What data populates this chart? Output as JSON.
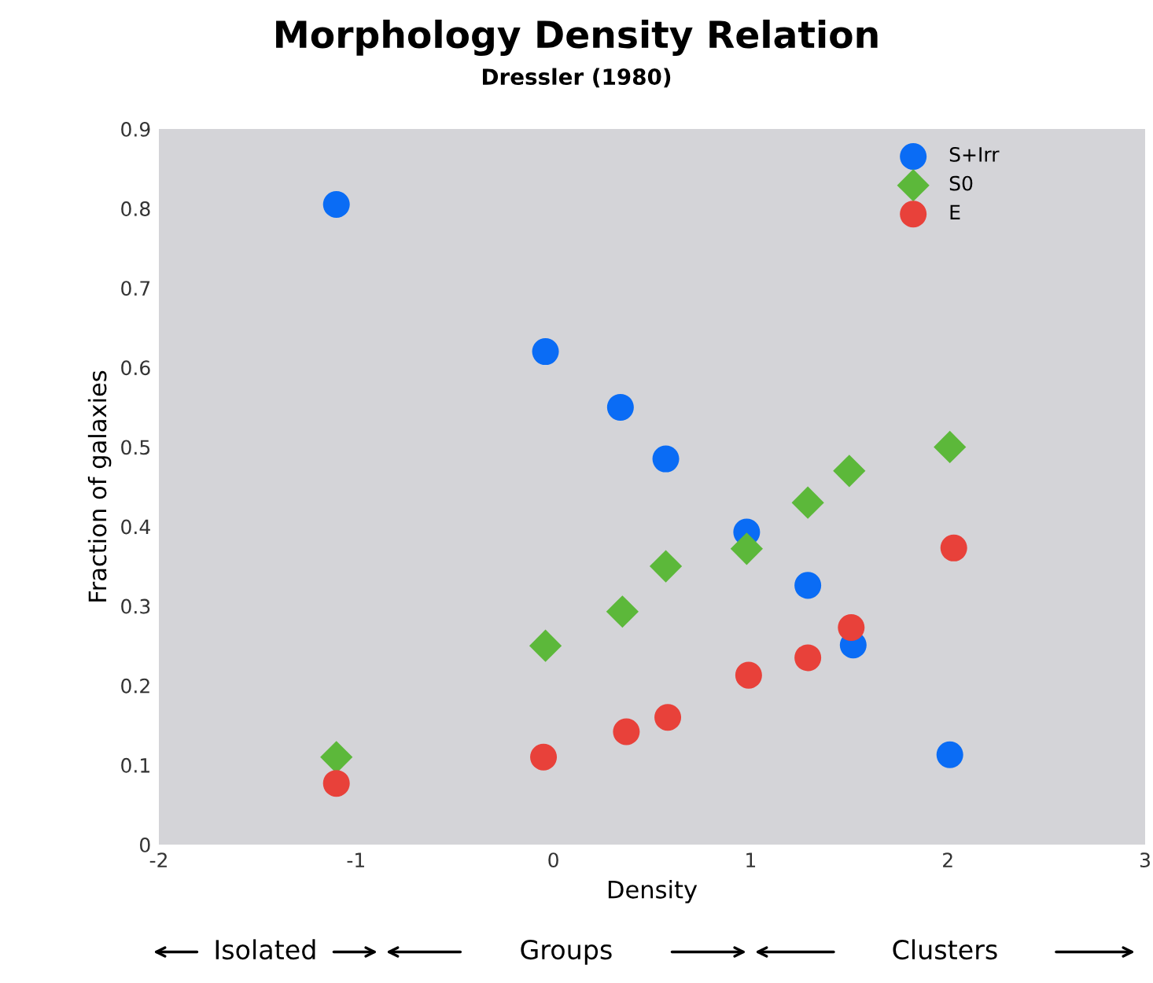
{
  "chart_data": {
    "type": "scatter",
    "title": "Morphology Density Relation",
    "subtitle": "Dressler (1980)",
    "xlabel": "Density",
    "ylabel": "Fraction of galaxies",
    "annotations": [
      "Isolated",
      "Groups",
      "Clusters"
    ],
    "xlim": [
      -2,
      3
    ],
    "xticks": [
      -2,
      -1,
      0,
      1,
      2,
      3
    ],
    "ylim": [
      0,
      0.9
    ],
    "yticks": [
      0,
      0.1,
      0.2,
      0.3,
      0.4,
      0.5,
      0.6,
      0.7,
      0.8,
      0.9
    ],
    "grid": false,
    "legend": "top right",
    "series": [
      {
        "name": "S+Irr",
        "color": "#0a6cf5",
        "marker": "circle",
        "x": [
          -1.1,
          -0.04,
          0.34,
          0.57,
          0.98,
          1.29,
          1.52,
          2.01
        ],
        "values": [
          0.805,
          0.62,
          0.55,
          0.485,
          0.393,
          0.326,
          0.251,
          0.113
        ]
      },
      {
        "name": "S0",
        "color": "#5cb83a",
        "marker": "diamond",
        "x": [
          -1.1,
          -0.04,
          0.35,
          0.57,
          0.98,
          1.29,
          1.5,
          2.01
        ],
        "values": [
          0.11,
          0.25,
          0.293,
          0.35,
          0.372,
          0.43,
          0.47,
          0.5
        ]
      },
      {
        "name": "E",
        "color": "#e8413a",
        "marker": "circle",
        "x": [
          -1.1,
          -0.05,
          0.37,
          0.58,
          0.99,
          1.29,
          1.51,
          2.03
        ],
        "values": [
          0.077,
          0.11,
          0.142,
          0.16,
          0.213,
          0.235,
          0.273,
          0.373
        ]
      }
    ]
  }
}
